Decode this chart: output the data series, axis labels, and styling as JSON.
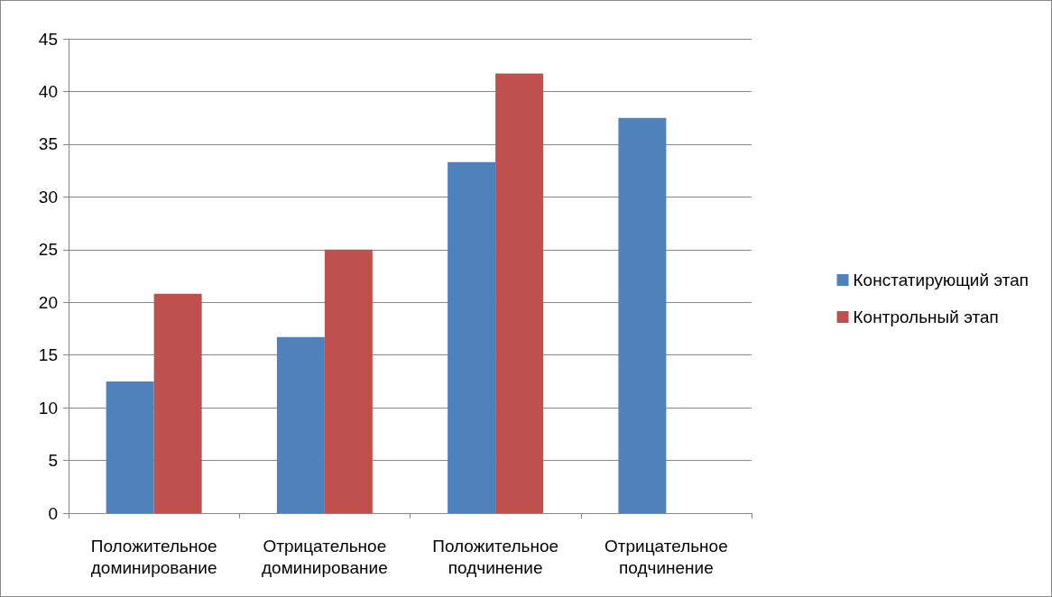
{
  "chart_data": {
    "type": "bar",
    "categories": [
      "Положительное доминирование",
      "Отрицательное доминирование",
      "Положительное подчинение",
      "Отрицательное подчинение"
    ],
    "series": [
      {
        "name": "Констатирующий этап",
        "color": "#4f81bd",
        "values": [
          12.5,
          16.7,
          33.3,
          37.5
        ]
      },
      {
        "name": "Контрольный этап",
        "color": "#c0504d",
        "values": [
          20.8,
          25,
          41.7,
          0
        ]
      }
    ],
    "ylim": [
      0,
      45
    ],
    "yticks": [
      0,
      5,
      10,
      15,
      20,
      25,
      30,
      35,
      40,
      45
    ],
    "grid": "y",
    "legend": "right"
  }
}
